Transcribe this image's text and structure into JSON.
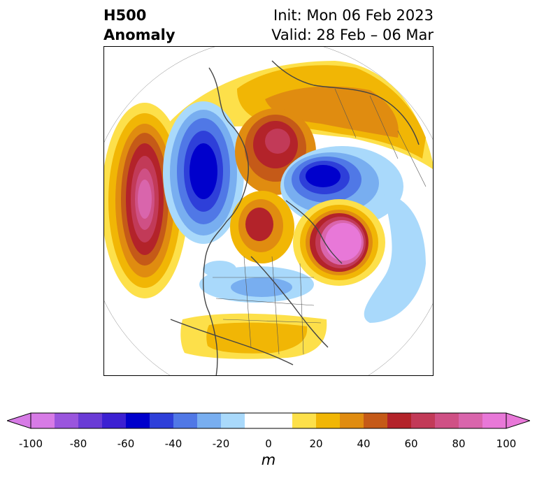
{
  "title": {
    "line1": "H500",
    "line2": "Anomaly",
    "init": "Init: Mon 06 Feb 2023",
    "valid": "Valid: 28 Feb – 06 Mar"
  },
  "colorbar": {
    "unit": "m",
    "min": -100,
    "max": 100,
    "step": 10,
    "extend": "both",
    "ticks": [
      "-100",
      "-80",
      "-60",
      "-40",
      "-20",
      "0",
      "20",
      "40",
      "60",
      "80",
      "100"
    ],
    "colors": [
      "#d77be6",
      "#9a55dd",
      "#6a3bd6",
      "#3c20d2",
      "#0000cc",
      "#2e3fd9",
      "#5078e6",
      "#78aef0",
      "#a9d9fb",
      "#ffffff",
      "#ffffff",
      "#fde04a",
      "#f1b605",
      "#e08c10",
      "#c55a18",
      "#b3232a",
      "#c23a58",
      "#cf5085",
      "#d965ac",
      "#e878d8"
    ]
  },
  "map": {
    "projection": "north-polar-stereographic",
    "region": "Northern Hemisphere / North America",
    "icon": "basemap-coastlines-borders"
  }
}
